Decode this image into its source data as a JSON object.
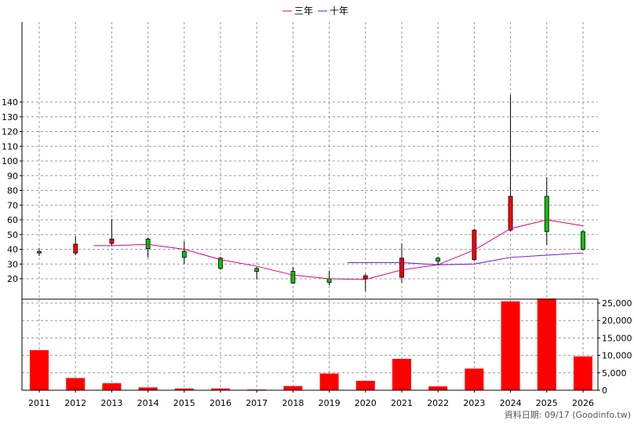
{
  "chart_data": {
    "type": "candlestick",
    "years": [
      "2011",
      "2012",
      "2013",
      "2014",
      "2015",
      "2016",
      "2017",
      "2018",
      "2019",
      "2020",
      "2021",
      "2022",
      "2023",
      "2024",
      "2025",
      "2026"
    ],
    "price_axis": {
      "ylim": [
        10,
        148
      ],
      "ticks": [
        20,
        30,
        40,
        50,
        60,
        70,
        80,
        90,
        100,
        110,
        120,
        130,
        140
      ]
    },
    "volume_axis": {
      "ylim": [
        0,
        27000
      ],
      "ticks": [
        0,
        5000,
        10000,
        15000,
        20000,
        25000
      ],
      "tick_labels": [
        "0",
        "5,000",
        "10,000",
        "15,000",
        "20,000",
        "25,000"
      ]
    },
    "candles": [
      {
        "year": "2011",
        "open": 38.5,
        "close": 37.5,
        "high": 41,
        "low": 35.5
      },
      {
        "year": "2012",
        "open": 37.5,
        "close": 43.5,
        "high": 49,
        "low": 36
      },
      {
        "year": "2013",
        "open": 44,
        "close": 47,
        "high": 60.5,
        "low": 42
      },
      {
        "year": "2014",
        "open": 47,
        "close": 40.5,
        "high": 48,
        "low": 34.5
      },
      {
        "year": "2015",
        "open": 38.5,
        "close": 34.5,
        "high": 45.5,
        "low": 30
      },
      {
        "year": "2016",
        "open": 34,
        "close": 27,
        "high": 35,
        "low": 26
      },
      {
        "year": "2017",
        "open": 27,
        "close": 25,
        "high": 28,
        "low": 19.5
      },
      {
        "year": "2018",
        "open": 25,
        "close": 17,
        "high": 28,
        "low": 16.5
      },
      {
        "year": "2019",
        "open": 20,
        "close": 17.5,
        "high": 25.5,
        "low": 15.5
      },
      {
        "year": "2020",
        "open": 20,
        "close": 22,
        "high": 23.5,
        "low": 11.5
      },
      {
        "year": "2021",
        "open": 21,
        "close": 34,
        "high": 44,
        "low": 17
      },
      {
        "year": "2022",
        "open": 34,
        "close": 32,
        "high": 35,
        "low": 29
      },
      {
        "year": "2023",
        "open": 33,
        "close": 53,
        "high": 54,
        "low": 32
      },
      {
        "year": "2024",
        "open": 53,
        "close": 76,
        "high": 145,
        "low": 52
      },
      {
        "year": "2025",
        "open": 76,
        "close": 52,
        "high": 89,
        "low": 43
      },
      {
        "year": "2026",
        "open": 52,
        "close": 40,
        "high": 53,
        "low": 39
      }
    ],
    "series": [
      {
        "name": "三年",
        "color": "#e0007a",
        "values": [
          null,
          null,
          42.5,
          43.3,
          40,
          33,
          28.5,
          22.5,
          20,
          19.5,
          26,
          29.5,
          39.5,
          54,
          60,
          56
        ]
      },
      {
        "name": "十年",
        "color": "#6a18c8",
        "values": [
          null,
          null,
          null,
          null,
          null,
          null,
          null,
          null,
          null,
          31,
          31,
          29.5,
          30,
          34.5,
          36,
          37.5
        ]
      }
    ],
    "volume": [
      11500,
      3500,
      2000,
      800,
      500,
      500,
      200,
      1200,
      4800,
      2700,
      9000,
      1100,
      6200,
      25500,
      26300,
      9700
    ],
    "colors": {
      "up": "#ff0000",
      "down": "#00c800",
      "volume": "#ff0000",
      "grid": "#999999"
    },
    "legend_position": "top-center"
  },
  "footer": {
    "source_text": "資料日期: 09/17  (Goodinfo.tw)"
  }
}
